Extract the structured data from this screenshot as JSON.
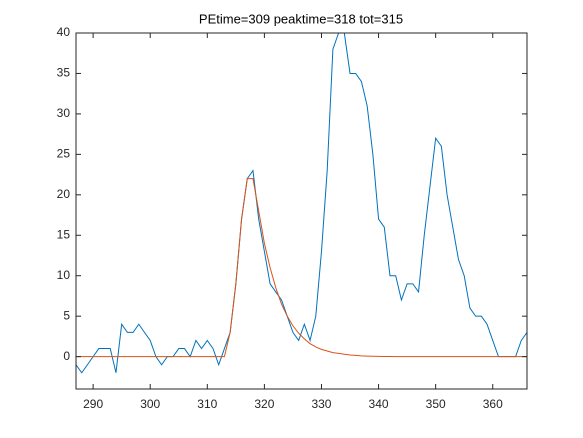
{
  "chart_data": {
    "type": "line",
    "title": "PEtime=309 peaktime=318 tot=315",
    "x": [
      287,
      288,
      289,
      290,
      291,
      292,
      293,
      294,
      295,
      296,
      297,
      298,
      299,
      300,
      301,
      302,
      303,
      304,
      305,
      306,
      307,
      308,
      309,
      310,
      311,
      312,
      313,
      314,
      315,
      316,
      317,
      318,
      319,
      320,
      321,
      322,
      323,
      324,
      325,
      326,
      327,
      328,
      329,
      330,
      331,
      332,
      333,
      334,
      335,
      336,
      337,
      338,
      339,
      340,
      341,
      342,
      343,
      344,
      345,
      346,
      347,
      348,
      349,
      350,
      351,
      352,
      353,
      354,
      355,
      356,
      357,
      358,
      359,
      360,
      361,
      362,
      363,
      364,
      365,
      366
    ],
    "series": [
      {
        "color": "#0072BD",
        "values": [
          -1,
          -2,
          -1,
          0,
          1,
          1,
          1,
          -2,
          4,
          3,
          3,
          4,
          3,
          2,
          0,
          -1,
          0,
          0,
          1,
          1,
          0,
          2,
          1,
          2,
          1,
          -1,
          1,
          3,
          9,
          17,
          22,
          23,
          17,
          13,
          9,
          8,
          7,
          5,
          3,
          2,
          4,
          2,
          5,
          13,
          23,
          38,
          40,
          40,
          35,
          35,
          34,
          31,
          25,
          17,
          16,
          10,
          10,
          7,
          9,
          9,
          8,
          15,
          21,
          27,
          26,
          20,
          16,
          12,
          10,
          6,
          5,
          5,
          4,
          2,
          0,
          0,
          0,
          0,
          2,
          3
        ]
      },
      {
        "color": "#D95319",
        "values": [
          0,
          0,
          0,
          0,
          0,
          0,
          0,
          0,
          0,
          0,
          0,
          0,
          0,
          0,
          0,
          0,
          0,
          0,
          0,
          0,
          0,
          0,
          0,
          0,
          0,
          0,
          0,
          3,
          9,
          17,
          22,
          22,
          18,
          14,
          11,
          8.5,
          6.5,
          5,
          3.8,
          2.9,
          2.2,
          1.6,
          1.2,
          0.9,
          0.7,
          0.5,
          0.4,
          0.3,
          0.2,
          0.15,
          0.1,
          0.07,
          0.05,
          0.03,
          0.02,
          0.01,
          0,
          0,
          0,
          0,
          0,
          0,
          0,
          0,
          0,
          0,
          0,
          0,
          0,
          0,
          0,
          0,
          0,
          0,
          0,
          0,
          0,
          0,
          0,
          0
        ]
      }
    ],
    "xlim": [
      287,
      366
    ],
    "ylim": [
      -4,
      40
    ],
    "xticks": [
      290,
      300,
      310,
      320,
      330,
      340,
      350,
      360
    ],
    "yticks": [
      0,
      5,
      10,
      15,
      20,
      25,
      30,
      35,
      40
    ]
  }
}
